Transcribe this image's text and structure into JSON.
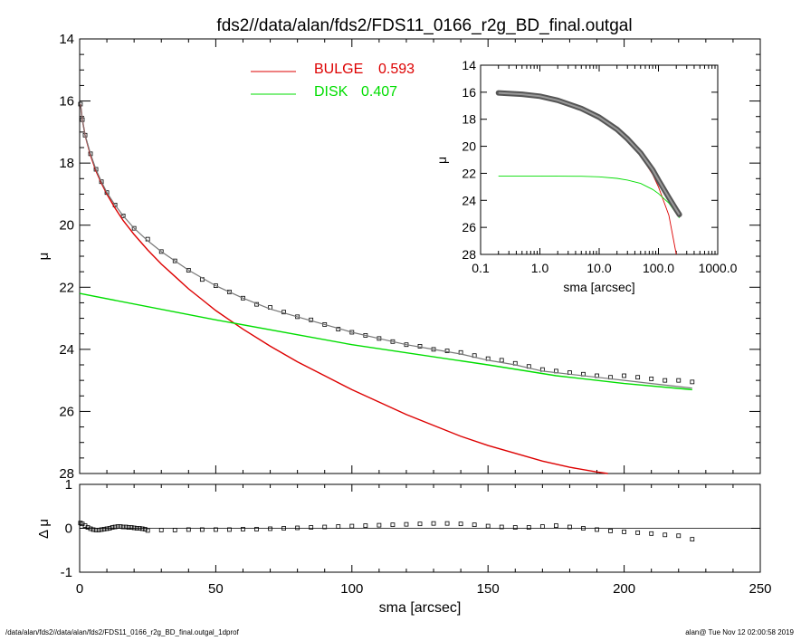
{
  "title": "fds2//data/alan/fds2/FDS11_0166_r2g_BD_final.outgal",
  "footer": {
    "left": "/data/alan/fds2//data/alan/fds2/FDS11_0166_r2g_BD_final.outgal_1dprof",
    "right": "alan@  Tue Nov 12 02:00:58 2019"
  },
  "colors": {
    "bulge": "#dd0000",
    "disk": "#00dd00",
    "data": "#000000"
  },
  "legend": {
    "bulge_label": "BULGE",
    "bulge_value": "0.593",
    "disk_label": "DISK",
    "disk_value": "0.407"
  },
  "chart_data": [
    {
      "id": "main",
      "type": "line",
      "xlabel": "sma [arcsec]",
      "ylabel": "μ",
      "xlim": [
        0,
        250
      ],
      "ylim": [
        28,
        14
      ],
      "xticks": [
        0,
        50,
        100,
        150,
        200,
        250
      ],
      "yticks": [
        14,
        16,
        18,
        20,
        22,
        24,
        26,
        28
      ],
      "legend_position": "top-center",
      "series": [
        {
          "name": "BULGE",
          "color": "#dd0000",
          "x": [
            0.3,
            1,
            2,
            4,
            6,
            8,
            10,
            13,
            16,
            20,
            25,
            30,
            35,
            40,
            45,
            50,
            55,
            60,
            70,
            80,
            90,
            100,
            110,
            120,
            130,
            140,
            150,
            160,
            170,
            180,
            190,
            194
          ],
          "y": [
            16.1,
            16.6,
            17.1,
            17.75,
            18.25,
            18.65,
            19.0,
            19.45,
            19.85,
            20.3,
            20.8,
            21.25,
            21.65,
            22.05,
            22.4,
            22.75,
            23.05,
            23.35,
            23.9,
            24.4,
            24.85,
            25.3,
            25.7,
            26.1,
            26.45,
            26.8,
            27.1,
            27.35,
            27.6,
            27.8,
            27.95,
            28.0
          ]
        },
        {
          "name": "DISK",
          "color": "#00dd00",
          "x": [
            0,
            50,
            100,
            150,
            175,
            200,
            225
          ],
          "y": [
            22.2,
            23.05,
            23.85,
            24.5,
            24.85,
            25.1,
            25.3
          ]
        },
        {
          "name": "total",
          "color": "#000000",
          "x": [
            0.3,
            1,
            2,
            4,
            6,
            8,
            10,
            13,
            16,
            20,
            25,
            30,
            40,
            50,
            60,
            70,
            80,
            90,
            100,
            110,
            120,
            130,
            140,
            150,
            160,
            170,
            180,
            190,
            200,
            210,
            220,
            225
          ],
          "y": [
            16.1,
            16.6,
            17.1,
            17.7,
            18.2,
            18.6,
            18.95,
            19.35,
            19.7,
            20.1,
            20.5,
            20.85,
            21.45,
            21.95,
            22.35,
            22.7,
            22.95,
            23.2,
            23.45,
            23.65,
            23.85,
            24.0,
            24.15,
            24.35,
            24.5,
            24.7,
            24.8,
            24.9,
            25.0,
            25.1,
            25.2,
            25.25
          ]
        }
      ],
      "observed": {
        "x": [
          0.3,
          1,
          2,
          4,
          6,
          8,
          10,
          13,
          16,
          20,
          25,
          30,
          35,
          40,
          45,
          50,
          55,
          60,
          65,
          70,
          75,
          80,
          85,
          90,
          95,
          100,
          105,
          110,
          115,
          120,
          125,
          130,
          135,
          140,
          145,
          150,
          155,
          160,
          165,
          170,
          175,
          180,
          185,
          190,
          195,
          200,
          205,
          210,
          215,
          220,
          225
        ],
        "y": [
          16.1,
          16.6,
          17.1,
          17.7,
          18.2,
          18.6,
          18.95,
          19.35,
          19.7,
          20.1,
          20.45,
          20.85,
          21.15,
          21.45,
          21.75,
          21.95,
          22.15,
          22.35,
          22.55,
          22.65,
          22.8,
          22.95,
          23.05,
          23.2,
          23.35,
          23.45,
          23.55,
          23.65,
          23.75,
          23.85,
          23.9,
          24.0,
          24.05,
          24.1,
          24.2,
          24.3,
          24.35,
          24.45,
          24.55,
          24.65,
          24.7,
          24.75,
          24.8,
          24.85,
          24.9,
          24.85,
          24.9,
          24.95,
          25.0,
          25.0,
          25.05
        ]
      }
    },
    {
      "id": "residual",
      "type": "scatter",
      "xlabel": "sma [arcsec]",
      "ylabel": "Δ μ",
      "xlim": [
        0,
        250
      ],
      "ylim": [
        -1,
        1
      ],
      "xticks": [
        0,
        50,
        100,
        150,
        200,
        250
      ],
      "yticks": [
        1,
        0,
        -1
      ],
      "x": [
        0.3,
        1,
        2,
        3,
        4,
        5,
        6,
        7,
        8,
        9,
        10,
        11,
        12,
        13,
        14,
        15,
        16,
        17,
        18,
        19,
        20,
        21,
        22,
        23,
        24,
        25,
        30,
        35,
        40,
        45,
        50,
        55,
        60,
        65,
        70,
        75,
        80,
        85,
        90,
        95,
        100,
        105,
        110,
        115,
        120,
        125,
        130,
        135,
        140,
        145,
        150,
        155,
        160,
        165,
        170,
        175,
        180,
        185,
        190,
        195,
        200,
        205,
        210,
        215,
        220,
        225
      ],
      "y": [
        0.12,
        0.1,
        0.06,
        0.02,
        -0.01,
        -0.03,
        -0.04,
        -0.04,
        -0.03,
        -0.02,
        -0.01,
        0.0,
        0.02,
        0.03,
        0.04,
        0.04,
        0.03,
        0.03,
        0.02,
        0.02,
        0.01,
        0.0,
        0.0,
        -0.01,
        -0.02,
        -0.05,
        -0.04,
        -0.04,
        -0.03,
        -0.03,
        -0.03,
        -0.03,
        -0.02,
        -0.02,
        -0.01,
        0.0,
        0.01,
        0.02,
        0.03,
        0.04,
        0.05,
        0.06,
        0.07,
        0.08,
        0.09,
        0.1,
        0.11,
        0.11,
        0.1,
        0.08,
        0.05,
        0.03,
        0.02,
        0.02,
        0.04,
        0.06,
        0.03,
        0.0,
        -0.03,
        -0.06,
        -0.08,
        -0.1,
        -0.12,
        -0.15,
        -0.17,
        -0.25
      ]
    },
    {
      "id": "inset",
      "type": "line",
      "xlabel": "sma [arcsec]",
      "ylabel": "μ",
      "xscale": "log",
      "xlim": [
        0.1,
        1000
      ],
      "ylim": [
        28,
        14
      ],
      "xticks": [
        0.1,
        1,
        10,
        100,
        1000
      ],
      "xtick_labels": [
        "0.1",
        "1.0",
        "10.0",
        "100.0",
        "1000.0"
      ],
      "yticks": [
        14,
        16,
        18,
        20,
        22,
        24,
        26,
        28
      ],
      "series": [
        {
          "name": "BULGE",
          "color": "#dd0000",
          "x": [
            0.2,
            0.5,
            1,
            2,
            5,
            10,
            20,
            30,
            50,
            80,
            100,
            150,
            200
          ],
          "y": [
            16.05,
            16.15,
            16.3,
            16.6,
            17.2,
            17.85,
            18.8,
            19.55,
            20.7,
            22.1,
            23.0,
            25.1,
            28.0
          ]
        },
        {
          "name": "DISK",
          "color": "#00dd00",
          "x": [
            0.2,
            1,
            5,
            10,
            20,
            30,
            50,
            80,
            100,
            150,
            225
          ],
          "y": [
            22.2,
            22.2,
            22.22,
            22.26,
            22.37,
            22.5,
            22.75,
            23.2,
            23.5,
            24.2,
            25.3
          ]
        },
        {
          "name": "total",
          "color": "#000000",
          "x": [
            0.2,
            0.5,
            1,
            2,
            5,
            10,
            20,
            30,
            50,
            80,
            100,
            150,
            200,
            225
          ],
          "y": [
            16.05,
            16.15,
            16.3,
            16.6,
            17.2,
            17.85,
            18.75,
            19.45,
            20.5,
            21.75,
            22.5,
            23.8,
            24.7,
            25.05
          ]
        }
      ]
    }
  ]
}
